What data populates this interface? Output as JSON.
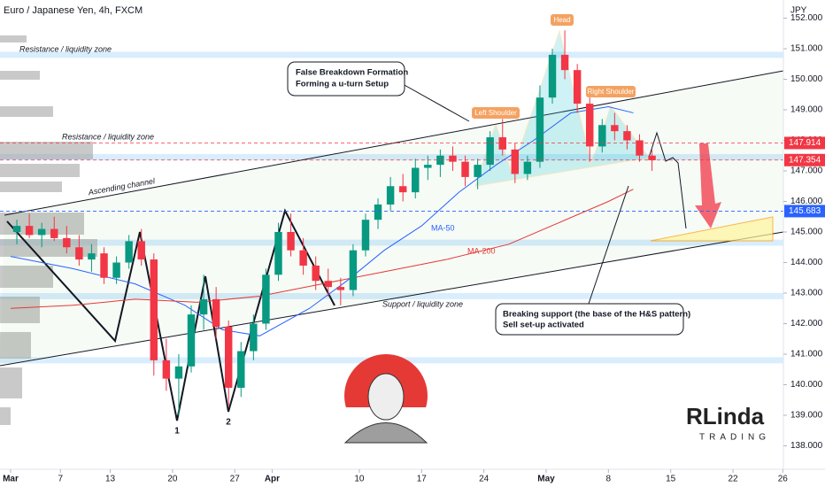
{
  "chart_data": {
    "type": "candlestick",
    "title": "Euro / Japanese Yen, 4h, FXCM",
    "y_unit": "JPY",
    "xlim": [
      -0.853,
      62.05
    ],
    "ylim": [
      137.232,
      152.594
    ],
    "xticks": [
      {
        "value": 0,
        "label": "Mar"
      },
      {
        "value": 4,
        "label": "7"
      },
      {
        "value": 8,
        "label": "13"
      },
      {
        "value": 13,
        "label": "20"
      },
      {
        "value": 18,
        "label": "27"
      },
      {
        "value": 21,
        "label": "Apr"
      },
      {
        "value": 28,
        "label": "10"
      },
      {
        "value": 33,
        "label": "17"
      },
      {
        "value": 38,
        "label": "24"
      },
      {
        "value": 43,
        "label": "May"
      },
      {
        "value": 48,
        "label": "8"
      },
      {
        "value": 53,
        "label": "15"
      },
      {
        "value": 58,
        "label": "22"
      },
      {
        "value": 62,
        "label": "26"
      }
    ],
    "yticks": [
      {
        "value": 138,
        "label": "138.000"
      },
      {
        "value": 139,
        "label": "139.000"
      },
      {
        "value": 140,
        "label": "140.000"
      },
      {
        "value": 141,
        "label": "141.000"
      },
      {
        "value": 142,
        "label": "142.000"
      },
      {
        "value": 143,
        "label": "143.000"
      },
      {
        "value": 144,
        "label": "144.000"
      },
      {
        "value": 145,
        "label": "145.000"
      },
      {
        "value": 146,
        "label": "146.000"
      },
      {
        "value": 147,
        "label": "147.000"
      },
      {
        "value": 148,
        "label": "148.000"
      },
      {
        "value": 149,
        "label": "149.000"
      },
      {
        "value": 150,
        "label": "150.000"
      },
      {
        "value": 151,
        "label": "151.000"
      },
      {
        "value": 152,
        "label": "152.000"
      }
    ],
    "up_color": "#089981",
    "down_color": "#f23645",
    "x": [
      0.5,
      1.5,
      2.5,
      3.5,
      4.5,
      5.5,
      6.5,
      7.5,
      8.5,
      9.5,
      10.5,
      11.5,
      12.5,
      13.5,
      14.5,
      15.5,
      16.5,
      17.5,
      18.5,
      19.5,
      20.5,
      21.5,
      22.5,
      23.5,
      24.5,
      25.5,
      26.5,
      27.5,
      28.5,
      29.5,
      30.5,
      31.5,
      32.5,
      33.5,
      34.5,
      35.5,
      36.5,
      37.5,
      38.5,
      39.5,
      40.5,
      41.5,
      42.5,
      43.5,
      44.5,
      45.5,
      46.5,
      47.5,
      48.5,
      49.5,
      50.5,
      51.5
    ],
    "open": [
      145.0,
      145.2,
      144.9,
      145.1,
      144.8,
      144.5,
      144.1,
      144.3,
      143.5,
      144.0,
      144.7,
      144.1,
      140.8,
      140.2,
      140.6,
      142.3,
      142.8,
      141.9,
      139.9,
      141.1,
      142.0,
      143.6,
      145.0,
      144.4,
      143.9,
      143.4,
      143.2,
      143.1,
      144.4,
      145.4,
      145.9,
      146.5,
      146.3,
      147.1,
      147.2,
      147.5,
      147.3,
      146.8,
      147.2,
      148.1,
      147.7,
      146.9,
      147.3,
      149.4,
      150.8,
      150.3,
      149.2,
      147.8,
      148.5,
      148.3,
      148.0,
      147.5
    ],
    "high": [
      145.4,
      145.6,
      145.3,
      145.5,
      145.2,
      144.9,
      144.6,
      144.5,
      144.2,
      144.9,
      145.1,
      144.3,
      141.5,
      141.0,
      142.6,
      143.6,
      143.2,
      142.1,
      141.4,
      142.3,
      143.8,
      145.3,
      145.6,
      144.8,
      144.2,
      143.8,
      143.5,
      144.6,
      145.6,
      146.1,
      146.8,
      146.9,
      147.4,
      147.5,
      147.7,
      147.8,
      147.5,
      147.4,
      148.3,
      148.7,
      147.9,
      147.5,
      149.8,
      151.0,
      151.6,
      150.5,
      149.4,
      148.7,
      148.9,
      148.5,
      148.2,
      147.7
    ],
    "low": [
      144.6,
      144.8,
      144.5,
      144.7,
      144.3,
      143.9,
      143.7,
      143.3,
      143.3,
      143.8,
      143.9,
      140.3,
      139.8,
      139.0,
      140.4,
      141.8,
      141.5,
      139.3,
      139.6,
      140.8,
      141.8,
      143.4,
      144.2,
      143.6,
      143.1,
      142.9,
      142.6,
      142.9,
      144.2,
      145.1,
      145.7,
      146.0,
      146.1,
      146.7,
      146.8,
      147.0,
      146.5,
      146.4,
      147.0,
      147.5,
      146.6,
      146.7,
      147.1,
      149.2,
      150.0,
      148.9,
      147.3,
      147.6,
      148.0,
      147.7,
      147.3,
      147.0
    ],
    "close": [
      145.2,
      144.9,
      145.1,
      144.8,
      144.5,
      144.1,
      144.3,
      143.5,
      144.0,
      144.7,
      144.1,
      140.8,
      140.2,
      140.6,
      142.3,
      142.8,
      141.9,
      139.9,
      141.1,
      142.0,
      143.6,
      145.0,
      144.4,
      143.9,
      143.4,
      143.2,
      143.1,
      144.4,
      145.4,
      145.9,
      146.5,
      146.3,
      147.1,
      147.2,
      147.5,
      147.3,
      146.8,
      147.2,
      148.1,
      147.7,
      146.9,
      147.3,
      149.4,
      150.8,
      150.3,
      149.2,
      147.8,
      148.5,
      148.3,
      148.0,
      147.5,
      147.35
    ],
    "lines": [
      {
        "name": "MA-50",
        "color": "#2962ff",
        "x": [
          0,
          5,
          10,
          14,
          17,
          20,
          24,
          27,
          30,
          33,
          36,
          39,
          42,
          45,
          48,
          50
        ],
        "values": [
          144.2,
          143.8,
          143.3,
          142.6,
          141.8,
          141.6,
          142.5,
          143.4,
          144.4,
          145.2,
          146.3,
          147.2,
          148.0,
          148.9,
          149.1,
          148.9
        ]
      },
      {
        "name": "MA-200",
        "color": "#e53935",
        "x": [
          0,
          5,
          10,
          15,
          20,
          25,
          30,
          35,
          40,
          44,
          48,
          50
        ],
        "values": [
          142.5,
          142.6,
          142.8,
          142.7,
          142.9,
          143.3,
          143.7,
          144.1,
          144.6,
          145.3,
          146.0,
          146.4
        ]
      }
    ],
    "zones": [
      [
        150.7,
        150.9
      ],
      [
        147.35,
        147.55
      ],
      [
        144.55,
        144.75
      ],
      [
        142.8,
        143.0
      ],
      [
        140.7,
        140.9
      ]
    ],
    "price_labels": [
      {
        "value": 147.914,
        "color": "#f23645"
      },
      {
        "value": 147.354,
        "color": "#f23645"
      },
      {
        "value": 145.683,
        "color": "#2962ff"
      }
    ],
    "annotations": {
      "resistance_top": "Resistance / liquidity zone",
      "resistance_mid": "Resistance / liquidity zone",
      "channel": "Ascending channel",
      "support": "Support / liquidity zone",
      "callout1_line1": "False Breakdown Formation",
      "callout1_line2": "Forming a u-turn Setup",
      "callout2_line1": "Breaking support (the base of the H&S pattern)",
      "callout2_line2": "Sell set-up activated",
      "left_shoulder": "Left Shoulder",
      "head": "Head",
      "right_shoulder": "Right Shoulder",
      "point1": "1",
      "point2": "2",
      "logo1": "RLinda",
      "logo2": "TRADING"
    }
  }
}
